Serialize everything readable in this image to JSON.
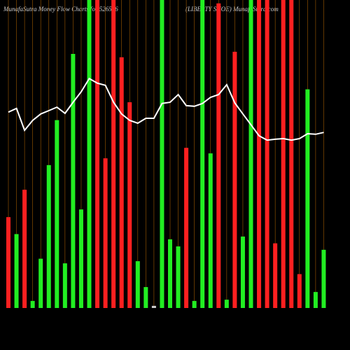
{
  "chart_data": {
    "type": "bar",
    "title": "MunafaSutra  Money Flow  Charts for 526596",
    "subtitle": "(LIBERTY SHOE) MunafaSutra.com",
    "categories": [
      null,
      null,
      null,
      null,
      null,
      null,
      null,
      null,
      null,
      null,
      null,
      null,
      null,
      null,
      null,
      null,
      null,
      null,
      null,
      null,
      null,
      null,
      null,
      null,
      null,
      null,
      null,
      null,
      null,
      null,
      null,
      null,
      null,
      null,
      null,
      null,
      null,
      null,
      null,
      null
    ],
    "values": [
      29.5,
      24,
      38.4,
      2.3,
      16,
      46.4,
      61,
      14.5,
      82.5,
      32,
      100,
      100,
      48.6,
      100,
      81.4,
      66.8,
      15.2,
      6.8,
      0.7,
      100,
      22.3,
      20,
      52,
      2.3,
      100,
      50.2,
      98.9,
      2.7,
      83.2,
      23.2,
      100,
      100,
      100,
      21,
      100,
      100,
      11,
      71,
      5.2,
      18.9
    ],
    "colors": [
      "#ff2020",
      "#22ee22",
      "#ff2020",
      "#22ee22",
      "#22ee22",
      "#22ee22",
      "#22ee22",
      "#22ee22",
      "#22ee22",
      "#22ee22",
      "#22ee22",
      "#ff2020",
      "#ff2020",
      "#ff2020",
      "#ff2020",
      "#ff2020",
      "#22ee22",
      "#22ee22",
      "#cccccc",
      "#22ee22",
      "#22ee22",
      "#22ee22",
      "#ff2020",
      "#22ee22",
      "#22ee22",
      "#22ee22",
      "#ff2020",
      "#22ee22",
      "#ff2020",
      "#22ee22",
      "#22ee22",
      "#ff2020",
      "#ff2020",
      "#ff2020",
      "#ff2020",
      "#ff2020",
      "#ff2020",
      "#22ee22",
      "#22ee22",
      "#22ee22"
    ],
    "series": [
      {
        "name": "MFI",
        "color": "#ffffff",
        "values": [
          63.6,
          64.8,
          57.7,
          60.9,
          63,
          64.1,
          65.2,
          63.2,
          66.8,
          70.2,
          74.5,
          73,
          72.3,
          66.8,
          63,
          60.9,
          60,
          61.6,
          61.6,
          66.4,
          66.8,
          69.3,
          65.7,
          65.5,
          66.4,
          68.4,
          69.3,
          72.5,
          66.6,
          63,
          59.5,
          55.9,
          54.5,
          54.8,
          55,
          54.5,
          55,
          56.6,
          56.4,
          57
        ]
      }
    ],
    "ylim": [
      0,
      100
    ],
    "grid_color": "#a05a00"
  }
}
